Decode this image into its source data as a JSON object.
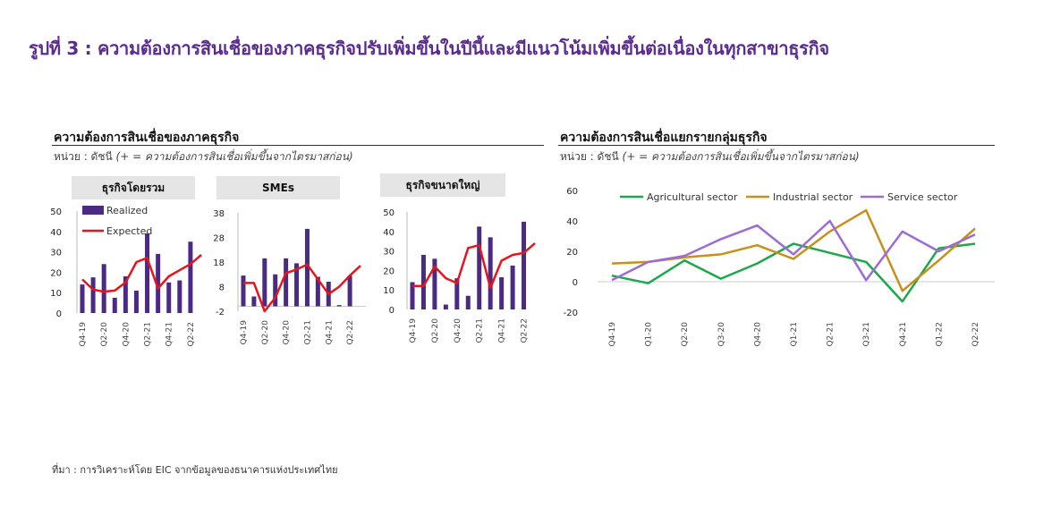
{
  "figure": {
    "title": "รูปที่ 3 : ความต้องการสินเชื่อของภาคธุรกิจปรับเพิ่มขึ้นในปีนี้และมีแนวโน้มเพิ่มขึ้นต่อเนื่องในทุกสาขาธุรกิจ",
    "source": "ที่มา : การวิเคราะห์โดย EIC จากข้อมูลของธนาคารแห่งประเทศไทย"
  },
  "left_panel": {
    "title": "ความต้องการสินเชื่อของภาคธุรกิจ",
    "unit_prefix": "หน่วย : ดัชนี",
    "unit_note": "(+ = ความต้องการสินเชื่อเพิ่มขึ้นจากไตรมาสก่อน)"
  },
  "right_panel": {
    "title": "ความต้องการสินเชื่อแยกรายกลุ่มธุรกิจ",
    "unit_prefix": "หน่วย : ดัชนี",
    "unit_note": "(+ = ความต้องการสินเชื่อเพิ่มขึ้นจากไตรมาสก่อน)"
  },
  "colors": {
    "title": "#5b2c8f",
    "realized": "#4b2a83",
    "expected": "#e8141c",
    "agricultural": "#1aa84b",
    "industrial": "#c8901a",
    "service": "#9b6cd6"
  },
  "chart_data": [
    {
      "type": "bar",
      "panel_header": "ธุรกิจโดยรวม",
      "categories": [
        "Q4-19",
        "Q1-20",
        "Q2-20",
        "Q3-20",
        "Q4-20",
        "Q1-21",
        "Q2-21",
        "Q3-21",
        "Q4-21",
        "Q1-22",
        "Q2-22",
        "Q3-22"
      ],
      "x_tick_labels": [
        "Q4-19",
        "Q2-20",
        "Q4-20",
        "Q2-21",
        "Q4-21",
        "Q2-22"
      ],
      "ylim": [
        0,
        50
      ],
      "y_ticks": [
        0,
        10,
        20,
        30,
        40,
        50
      ],
      "series": [
        {
          "name": "Realized",
          "kind": "bar",
          "values": [
            14,
            17.5,
            24,
            7.5,
            18,
            11,
            39,
            29,
            15,
            16,
            35,
            null
          ]
        },
        {
          "name": "Expected",
          "kind": "line",
          "values": [
            16.5,
            11.5,
            10.5,
            11,
            15,
            25,
            27,
            12,
            18,
            21,
            24,
            28.5
          ]
        }
      ],
      "legend": "top-left"
    },
    {
      "type": "bar",
      "panel_header": "SMEs",
      "categories": [
        "Q4-19",
        "Q1-20",
        "Q2-20",
        "Q3-20",
        "Q4-20",
        "Q1-21",
        "Q2-21",
        "Q3-21",
        "Q4-21",
        "Q1-22",
        "Q2-22",
        "Q3-22"
      ],
      "x_tick_labels": [
        "Q4-19",
        "Q2-20",
        "Q4-20",
        "Q2-21",
        "Q4-21",
        "Q2-22"
      ],
      "ylim": [
        -2,
        38
      ],
      "y_ticks": [
        -2,
        8,
        18,
        28,
        38
      ],
      "series": [
        {
          "name": "Realized",
          "kind": "bar",
          "values": [
            12.5,
            4,
            19.5,
            13,
            19.5,
            17.5,
            31.5,
            12,
            10,
            0.5,
            12.5,
            null
          ]
        },
        {
          "name": "Expected",
          "kind": "line",
          "values": [
            9.5,
            9.5,
            -2,
            3.5,
            13.5,
            15,
            17,
            11,
            5,
            8,
            12.5,
            16.5
          ]
        }
      ]
    },
    {
      "type": "bar",
      "panel_header": "ธุรกิจขนาดใหญ่",
      "categories": [
        "Q4-19",
        "Q1-20",
        "Q2-20",
        "Q3-20",
        "Q4-20",
        "Q1-21",
        "Q2-21",
        "Q3-21",
        "Q4-21",
        "Q1-22",
        "Q2-22",
        "Q3-22"
      ],
      "x_tick_labels": [
        "Q4-19",
        "Q2-20",
        "Q4-20",
        "Q2-21",
        "Q4-21",
        "Q2-22"
      ],
      "ylim": [
        0,
        50
      ],
      "y_ticks": [
        0,
        10,
        20,
        30,
        40,
        50
      ],
      "series": [
        {
          "name": "Realized",
          "kind": "bar",
          "values": [
            14,
            28,
            26,
            2.5,
            16,
            7,
            42.5,
            37,
            16.5,
            22.5,
            45,
            null
          ]
        },
        {
          "name": "Expected",
          "kind": "line",
          "values": [
            12,
            12,
            22,
            16,
            13.5,
            31.5,
            33,
            11,
            25,
            28,
            29,
            34
          ]
        }
      ]
    },
    {
      "type": "line",
      "categories": [
        "Q4-19",
        "Q1-20",
        "Q2-20",
        "Q3-20",
        "Q4-20",
        "Q1-21",
        "Q2-21",
        "Q3-21",
        "Q4-21",
        "Q1-22",
        "Q2-22"
      ],
      "ylim": [
        -20,
        60
      ],
      "y_ticks": [
        -20,
        0,
        20,
        40,
        60
      ],
      "series": [
        {
          "name": "Agricultural sector",
          "values": [
            4,
            -1,
            14,
            2,
            12,
            25,
            19,
            13,
            -13,
            22,
            25
          ]
        },
        {
          "name": "Industrial sector",
          "values": [
            12,
            13,
            16,
            18,
            24,
            15,
            33,
            47,
            -6,
            14,
            35
          ]
        },
        {
          "name": "Service sector",
          "values": [
            1,
            13,
            17,
            28,
            37,
            18,
            40,
            1,
            33,
            20,
            31
          ]
        }
      ],
      "legend": "top"
    }
  ]
}
